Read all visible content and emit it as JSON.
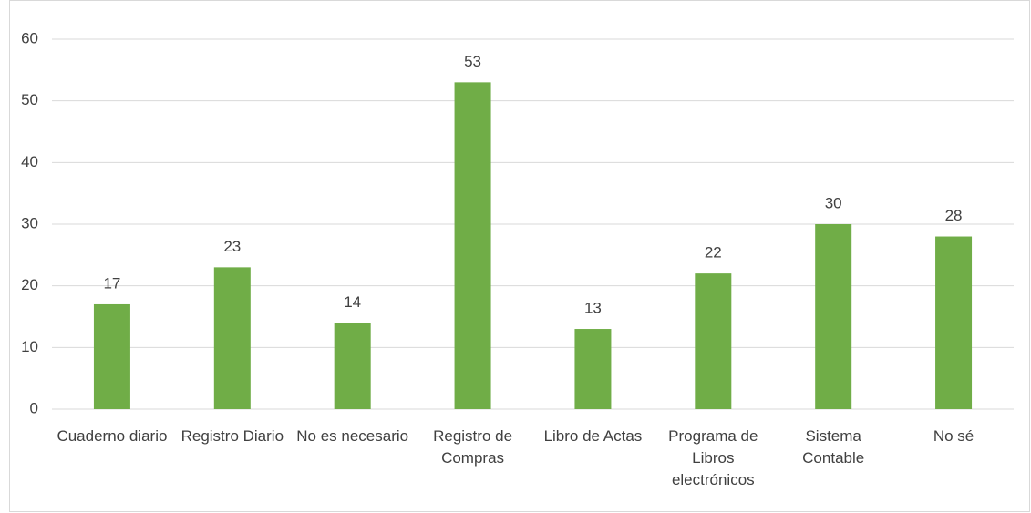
{
  "chart_data": {
    "type": "bar",
    "categories": [
      "Cuaderno diario",
      "Registro Diario",
      "No es necesario",
      "Registro de Compras",
      "Libro de Actas",
      "Programa de Libros electrónicos",
      "Sistema Contable",
      "No sé"
    ],
    "values": [
      17,
      23,
      14,
      53,
      13,
      22,
      30,
      28
    ],
    "color": "#70ad47",
    "ylim": [
      0,
      60
    ],
    "yticks": [
      0,
      10,
      20,
      30,
      40,
      50,
      60
    ],
    "grid": true
  }
}
